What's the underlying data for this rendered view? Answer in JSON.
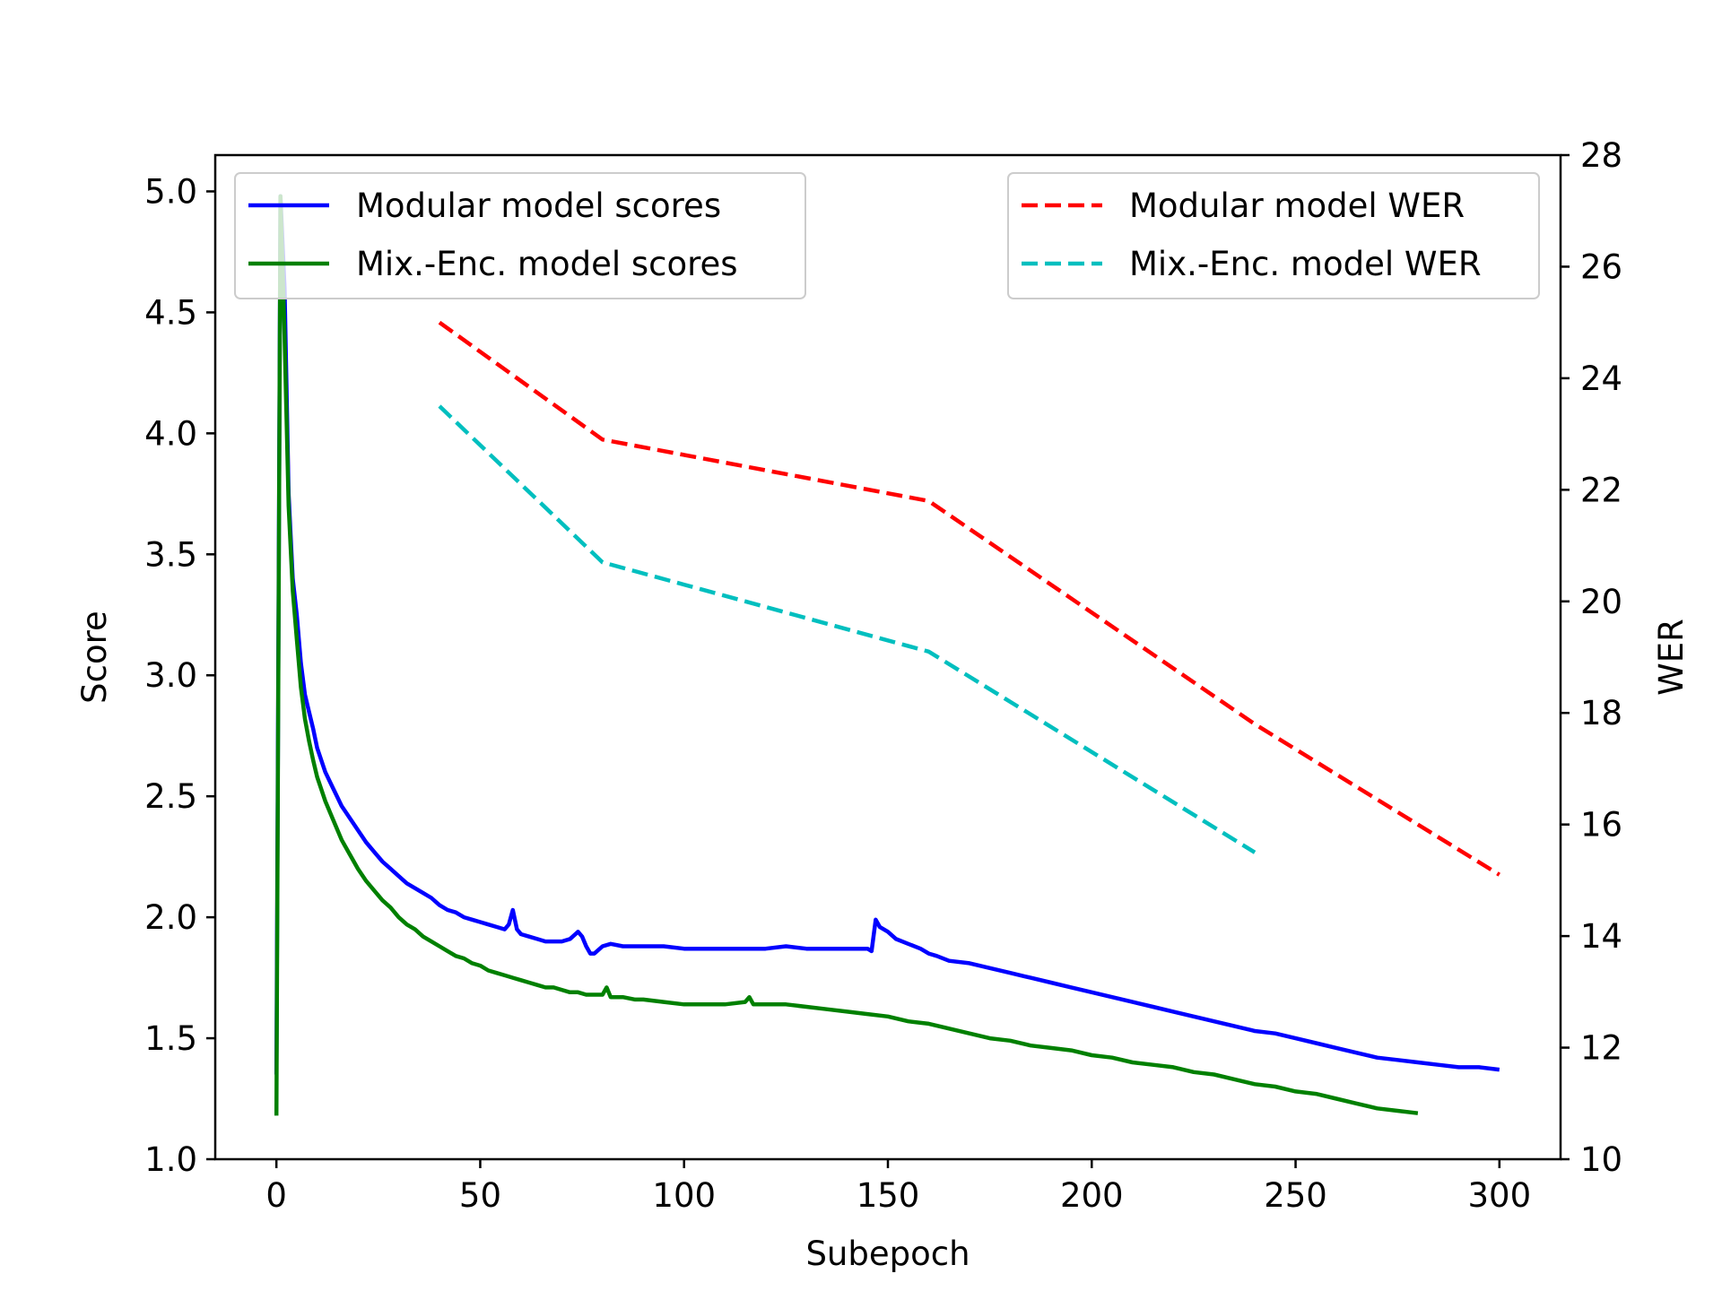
{
  "chart_data": {
    "type": "line",
    "xlabel": "Subepoch",
    "ylabel": "Score",
    "ylabel_right": "WER",
    "xlim": [
      -15,
      315
    ],
    "ylim": [
      1.0,
      5.15
    ],
    "ylim_right": [
      10,
      28
    ],
    "x_ticks": [
      0,
      50,
      100,
      150,
      200,
      250,
      300
    ],
    "y_ticks": [
      1.0,
      1.5,
      2.0,
      2.5,
      3.0,
      3.5,
      4.0,
      4.5,
      5.0
    ],
    "y_ticks_right": [
      10,
      12,
      14,
      16,
      18,
      20,
      22,
      24,
      26,
      28
    ],
    "grid": false,
    "legend_left_position": "upper-left",
    "legend_right_position": "upper-right",
    "series": [
      {
        "name": "Modular model scores",
        "axis": "left",
        "color": "#0000ff",
        "style": "solid",
        "points": [
          [
            0,
            1.35
          ],
          [
            1,
            4.98
          ],
          [
            2,
            4.6
          ],
          [
            3,
            3.75
          ],
          [
            4,
            3.4
          ],
          [
            5,
            3.25
          ],
          [
            6,
            3.05
          ],
          [
            7,
            2.92
          ],
          [
            8,
            2.85
          ],
          [
            9,
            2.78
          ],
          [
            10,
            2.7
          ],
          [
            12,
            2.6
          ],
          [
            14,
            2.53
          ],
          [
            16,
            2.46
          ],
          [
            18,
            2.41
          ],
          [
            20,
            2.36
          ],
          [
            22,
            2.31
          ],
          [
            24,
            2.27
          ],
          [
            26,
            2.23
          ],
          [
            28,
            2.2
          ],
          [
            30,
            2.17
          ],
          [
            32,
            2.14
          ],
          [
            34,
            2.12
          ],
          [
            36,
            2.1
          ],
          [
            38,
            2.08
          ],
          [
            40,
            2.05
          ],
          [
            42,
            2.03
          ],
          [
            44,
            2.02
          ],
          [
            46,
            2.0
          ],
          [
            48,
            1.99
          ],
          [
            50,
            1.98
          ],
          [
            52,
            1.97
          ],
          [
            54,
            1.96
          ],
          [
            56,
            1.95
          ],
          [
            57,
            1.97
          ],
          [
            58,
            2.03
          ],
          [
            59,
            1.95
          ],
          [
            60,
            1.93
          ],
          [
            62,
            1.92
          ],
          [
            64,
            1.91
          ],
          [
            66,
            1.9
          ],
          [
            68,
            1.9
          ],
          [
            70,
            1.9
          ],
          [
            72,
            1.91
          ],
          [
            74,
            1.94
          ],
          [
            75,
            1.92
          ],
          [
            76,
            1.88
          ],
          [
            77,
            1.85
          ],
          [
            78,
            1.85
          ],
          [
            80,
            1.88
          ],
          [
            82,
            1.89
          ],
          [
            85,
            1.88
          ],
          [
            90,
            1.88
          ],
          [
            95,
            1.88
          ],
          [
            100,
            1.87
          ],
          [
            105,
            1.87
          ],
          [
            110,
            1.87
          ],
          [
            115,
            1.87
          ],
          [
            120,
            1.87
          ],
          [
            125,
            1.88
          ],
          [
            130,
            1.87
          ],
          [
            135,
            1.87
          ],
          [
            140,
            1.87
          ],
          [
            145,
            1.87
          ],
          [
            146,
            1.86
          ],
          [
            147,
            1.99
          ],
          [
            148,
            1.96
          ],
          [
            150,
            1.94
          ],
          [
            152,
            1.91
          ],
          [
            155,
            1.89
          ],
          [
            158,
            1.87
          ],
          [
            160,
            1.85
          ],
          [
            162,
            1.84
          ],
          [
            165,
            1.82
          ],
          [
            170,
            1.81
          ],
          [
            175,
            1.79
          ],
          [
            180,
            1.77
          ],
          [
            185,
            1.75
          ],
          [
            190,
            1.73
          ],
          [
            195,
            1.71
          ],
          [
            200,
            1.69
          ],
          [
            205,
            1.67
          ],
          [
            210,
            1.65
          ],
          [
            215,
            1.63
          ],
          [
            220,
            1.61
          ],
          [
            225,
            1.59
          ],
          [
            230,
            1.57
          ],
          [
            235,
            1.55
          ],
          [
            240,
            1.53
          ],
          [
            245,
            1.52
          ],
          [
            250,
            1.5
          ],
          [
            255,
            1.48
          ],
          [
            260,
            1.46
          ],
          [
            265,
            1.44
          ],
          [
            270,
            1.42
          ],
          [
            275,
            1.41
          ],
          [
            280,
            1.4
          ],
          [
            285,
            1.39
          ],
          [
            290,
            1.38
          ],
          [
            295,
            1.38
          ],
          [
            300,
            1.37
          ]
        ]
      },
      {
        "name": "Mix.-Enc. model scores",
        "axis": "left",
        "color": "#008000",
        "style": "solid",
        "points": [
          [
            0,
            1.18
          ],
          [
            1,
            4.98
          ],
          [
            2,
            4.4
          ],
          [
            3,
            3.7
          ],
          [
            4,
            3.35
          ],
          [
            5,
            3.15
          ],
          [
            6,
            2.95
          ],
          [
            7,
            2.82
          ],
          [
            8,
            2.73
          ],
          [
            9,
            2.65
          ],
          [
            10,
            2.58
          ],
          [
            12,
            2.48
          ],
          [
            14,
            2.4
          ],
          [
            16,
            2.32
          ],
          [
            18,
            2.26
          ],
          [
            20,
            2.2
          ],
          [
            22,
            2.15
          ],
          [
            24,
            2.11
          ],
          [
            26,
            2.07
          ],
          [
            28,
            2.04
          ],
          [
            30,
            2.0
          ],
          [
            32,
            1.97
          ],
          [
            34,
            1.95
          ],
          [
            36,
            1.92
          ],
          [
            38,
            1.9
          ],
          [
            40,
            1.88
          ],
          [
            42,
            1.86
          ],
          [
            44,
            1.84
          ],
          [
            46,
            1.83
          ],
          [
            48,
            1.81
          ],
          [
            50,
            1.8
          ],
          [
            52,
            1.78
          ],
          [
            54,
            1.77
          ],
          [
            56,
            1.76
          ],
          [
            58,
            1.75
          ],
          [
            60,
            1.74
          ],
          [
            62,
            1.73
          ],
          [
            64,
            1.72
          ],
          [
            66,
            1.71
          ],
          [
            68,
            1.71
          ],
          [
            70,
            1.7
          ],
          [
            72,
            1.69
          ],
          [
            74,
            1.69
          ],
          [
            76,
            1.68
          ],
          [
            78,
            1.68
          ],
          [
            80,
            1.68
          ],
          [
            81,
            1.71
          ],
          [
            82,
            1.67
          ],
          [
            85,
            1.67
          ],
          [
            88,
            1.66
          ],
          [
            90,
            1.66
          ],
          [
            95,
            1.65
          ],
          [
            100,
            1.64
          ],
          [
            105,
            1.64
          ],
          [
            110,
            1.64
          ],
          [
            115,
            1.65
          ],
          [
            116,
            1.67
          ],
          [
            117,
            1.64
          ],
          [
            120,
            1.64
          ],
          [
            125,
            1.64
          ],
          [
            130,
            1.63
          ],
          [
            135,
            1.62
          ],
          [
            140,
            1.61
          ],
          [
            145,
            1.6
          ],
          [
            150,
            1.59
          ],
          [
            155,
            1.57
          ],
          [
            160,
            1.56
          ],
          [
            165,
            1.54
          ],
          [
            170,
            1.52
          ],
          [
            175,
            1.5
          ],
          [
            180,
            1.49
          ],
          [
            185,
            1.47
          ],
          [
            190,
            1.46
          ],
          [
            195,
            1.45
          ],
          [
            200,
            1.43
          ],
          [
            205,
            1.42
          ],
          [
            210,
            1.4
          ],
          [
            215,
            1.39
          ],
          [
            220,
            1.38
          ],
          [
            225,
            1.36
          ],
          [
            230,
            1.35
          ],
          [
            235,
            1.33
          ],
          [
            240,
            1.31
          ],
          [
            245,
            1.3
          ],
          [
            250,
            1.28
          ],
          [
            255,
            1.27
          ],
          [
            260,
            1.25
          ],
          [
            265,
            1.23
          ],
          [
            270,
            1.21
          ],
          [
            275,
            1.2
          ],
          [
            280,
            1.19
          ]
        ]
      },
      {
        "name": "Modular model WER",
        "axis": "right",
        "color": "#ff0000",
        "style": "dashed",
        "points": [
          [
            40,
            25.0
          ],
          [
            80,
            22.9
          ],
          [
            160,
            21.8
          ],
          [
            240,
            17.8
          ],
          [
            300,
            15.1
          ]
        ]
      },
      {
        "name": "Mix.-Enc. model WER",
        "axis": "right",
        "color": "#00bfbf",
        "style": "dashed",
        "points": [
          [
            40,
            23.5
          ],
          [
            80,
            20.7
          ],
          [
            160,
            19.1
          ],
          [
            240,
            15.5
          ]
        ]
      }
    ]
  }
}
